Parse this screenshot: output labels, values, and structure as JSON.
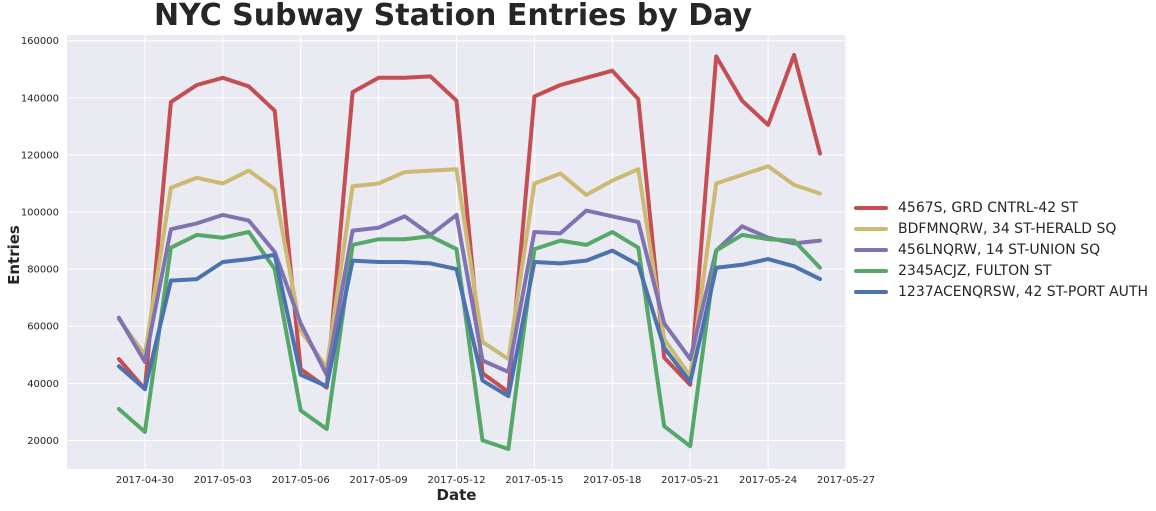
{
  "chart_data": {
    "type": "line",
    "title": "NYC Subway Station Entries by Day",
    "xlabel": "Date",
    "ylabel": "Entries",
    "grid": true,
    "legend_position": "right",
    "ylim": [
      10000,
      162000
    ],
    "xlim": [
      "2017-04-27",
      "2017-05-27"
    ],
    "x_ticks": [
      "2017-04-30",
      "2017-05-03",
      "2017-05-06",
      "2017-05-09",
      "2017-05-12",
      "2017-05-15",
      "2017-05-18",
      "2017-05-21",
      "2017-05-24",
      "2017-05-27"
    ],
    "y_ticks": [
      20000,
      40000,
      60000,
      80000,
      100000,
      120000,
      140000,
      160000
    ],
    "x": [
      "2017-04-29",
      "2017-04-30",
      "2017-05-01",
      "2017-05-02",
      "2017-05-03",
      "2017-05-04",
      "2017-05-05",
      "2017-05-06",
      "2017-05-07",
      "2017-05-08",
      "2017-05-09",
      "2017-05-10",
      "2017-05-11",
      "2017-05-12",
      "2017-05-13",
      "2017-05-14",
      "2017-05-15",
      "2017-05-16",
      "2017-05-17",
      "2017-05-18",
      "2017-05-19",
      "2017-05-20",
      "2017-05-21",
      "2017-05-22",
      "2017-05-23",
      "2017-05-24",
      "2017-05-25",
      "2017-05-26"
    ],
    "series": [
      {
        "name": "4567S, GRD CNTRL-42 ST",
        "color": "#C44E52",
        "values": [
          48500,
          38000,
          138500,
          144500,
          147000,
          144000,
          135500,
          45000,
          38500,
          142000,
          147000,
          147000,
          147500,
          139000,
          43500,
          37000,
          140500,
          144500,
          147000,
          149500,
          139500,
          49000,
          39500,
          154500,
          139000,
          130500,
          155000,
          120500
        ]
      },
      {
        "name": "BDFMNQRW, 34 ST-HERALD SQ",
        "color": "#CCB974",
        "values": [
          62500,
          50000,
          108500,
          112000,
          110000,
          114500,
          108000,
          58500,
          45500,
          109000,
          110000,
          114000,
          114500,
          115000,
          54500,
          48500,
          110000,
          113500,
          106000,
          111000,
          115000,
          55500,
          42500,
          110000,
          113000,
          116000,
          109500,
          106500
        ]
      },
      {
        "name": "456LNQRW, 14 ST-UNION SQ",
        "color": "#8172B2",
        "values": [
          63000,
          47500,
          94000,
          96000,
          99000,
          97000,
          86000,
          61000,
          43000,
          93500,
          94500,
          98500,
          92000,
          99000,
          48000,
          44000,
          93000,
          92500,
          100500,
          98500,
          96500,
          61000,
          48500,
          86500,
          95000,
          91000,
          89000,
          90000
        ]
      },
      {
        "name": "2345ACJZ, FULTON ST",
        "color": "#55A868",
        "values": [
          31000,
          23000,
          87500,
          92000,
          91000,
          93000,
          80000,
          30500,
          24000,
          88500,
          90500,
          90500,
          91500,
          87000,
          20000,
          17000,
          87000,
          90000,
          88500,
          93000,
          87500,
          25000,
          18000,
          86500,
          92000,
          90500,
          90000,
          80500
        ]
      },
      {
        "name": "1237ACENQRSW, 42 ST-PORT AUTH",
        "color": "#4C72B0",
        "values": [
          46000,
          38000,
          76000,
          76500,
          82500,
          83500,
          85000,
          43000,
          39000,
          83000,
          82500,
          82500,
          82000,
          80000,
          41000,
          35500,
          82500,
          82000,
          83000,
          86500,
          81500,
          52500,
          40500,
          80500,
          81500,
          83500,
          81000,
          76500
        ]
      }
    ]
  }
}
